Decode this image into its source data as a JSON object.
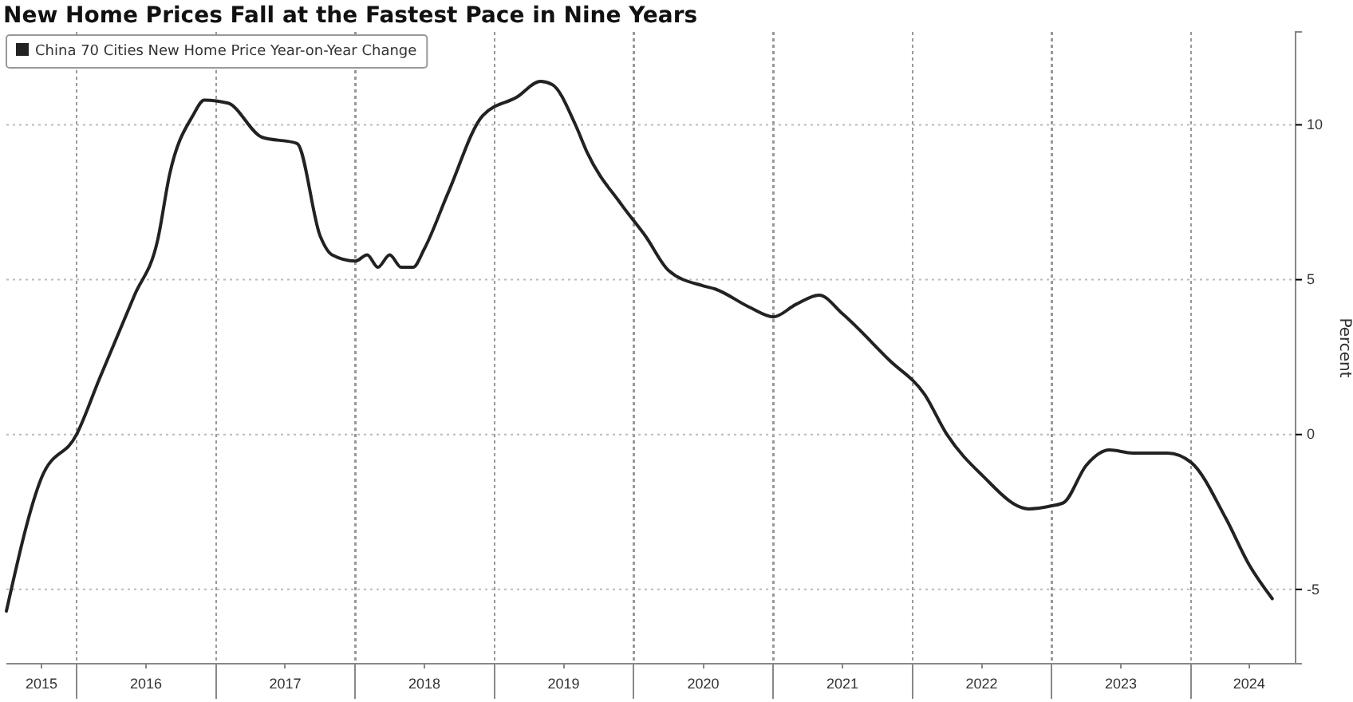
{
  "chart_data": {
    "type": "line",
    "title": "New Home Prices Fall at the Fastest Pace in Nine Years",
    "ylabel": "Percent",
    "x": [
      "2015-07-01",
      "2015-10-01",
      "2016-01-01",
      "2016-03-01",
      "2016-06-01",
      "2016-08-01",
      "2016-09-01",
      "2016-11-01",
      "2016-12-01",
      "2017-02-01",
      "2017-05-01",
      "2017-08-01",
      "2017-10-01",
      "2017-11-01",
      "2018-01-01",
      "2018-02-01",
      "2018-03-01",
      "2018-04-01",
      "2018-05-01",
      "2018-06-01",
      "2018-07-01",
      "2018-09-01",
      "2018-12-01",
      "2019-03-01",
      "2019-05-01",
      "2019-06-01",
      "2019-08-01",
      "2019-09-01",
      "2019-12-01",
      "2020-02-01",
      "2020-04-01",
      "2020-07-01",
      "2020-08-01",
      "2020-11-01",
      "2021-01-01",
      "2021-03-01",
      "2021-05-01",
      "2021-07-01",
      "2021-11-01",
      "2022-02-01",
      "2022-04-01",
      "2022-07-01",
      "2022-11-01",
      "2023-01-01",
      "2023-02-01",
      "2023-04-01",
      "2023-06-01",
      "2023-08-01",
      "2023-11-01",
      "2024-01-01",
      "2024-04-01",
      "2024-06-01",
      "2024-08-01"
    ],
    "series": [
      {
        "name": "China 70 Cities New Home Price Year-on-Year Change",
        "color": "#222222",
        "values": [
          -5.7,
          -1.4,
          0,
          1.8,
          4.5,
          6.3,
          8.4,
          10.3,
          10.8,
          10.7,
          9.6,
          9.4,
          6.4,
          5.8,
          5.6,
          5.8,
          5.4,
          5.8,
          5.4,
          5.4,
          6.0,
          7.8,
          10.3,
          10.9,
          11.4,
          11.3,
          10.0,
          9.1,
          7.4,
          6.4,
          5.3,
          4.8,
          4.7,
          4.1,
          3.8,
          4.2,
          4.5,
          3.9,
          2.4,
          1.3,
          0,
          -1.3,
          -2.4,
          -2.3,
          -2.2,
          -1.0,
          -0.5,
          -0.6,
          -0.6,
          -0.9,
          -2.7,
          -4.2,
          -5.3
        ]
      }
    ],
    "xlim": [
      "2015-07-01",
      "2024-10-01"
    ],
    "ylim": [
      -7.4,
      13
    ],
    "yticks": [
      -5,
      0,
      5,
      10
    ],
    "xticks": [
      {
        "value": "2015-10-01",
        "label": "2015"
      },
      {
        "value": "2016-01-01",
        "label": null
      },
      {
        "value": "2016-07-01",
        "label": "2016"
      },
      {
        "value": "2017-01-01",
        "label": null
      },
      {
        "value": "2017-07-01",
        "label": "2017"
      },
      {
        "value": "2018-01-01",
        "label": null
      },
      {
        "value": "2018-07-01",
        "label": "2018"
      },
      {
        "value": "2019-01-01",
        "label": null
      },
      {
        "value": "2019-07-01",
        "label": "2019"
      },
      {
        "value": "2020-01-01",
        "label": null
      },
      {
        "value": "2020-07-01",
        "label": "2020"
      },
      {
        "value": "2021-01-01",
        "label": null
      },
      {
        "value": "2021-07-01",
        "label": "2021"
      },
      {
        "value": "2022-01-01",
        "label": null
      },
      {
        "value": "2022-07-01",
        "label": "2022"
      },
      {
        "value": "2023-01-01",
        "label": null
      },
      {
        "value": "2023-07-01",
        "label": "2023"
      },
      {
        "value": "2024-01-01",
        "label": null
      },
      {
        "value": "2024-06-01",
        "label": "2024"
      }
    ],
    "grid": true,
    "legend": "top left",
    "line_style": "solid",
    "marker": "none"
  }
}
